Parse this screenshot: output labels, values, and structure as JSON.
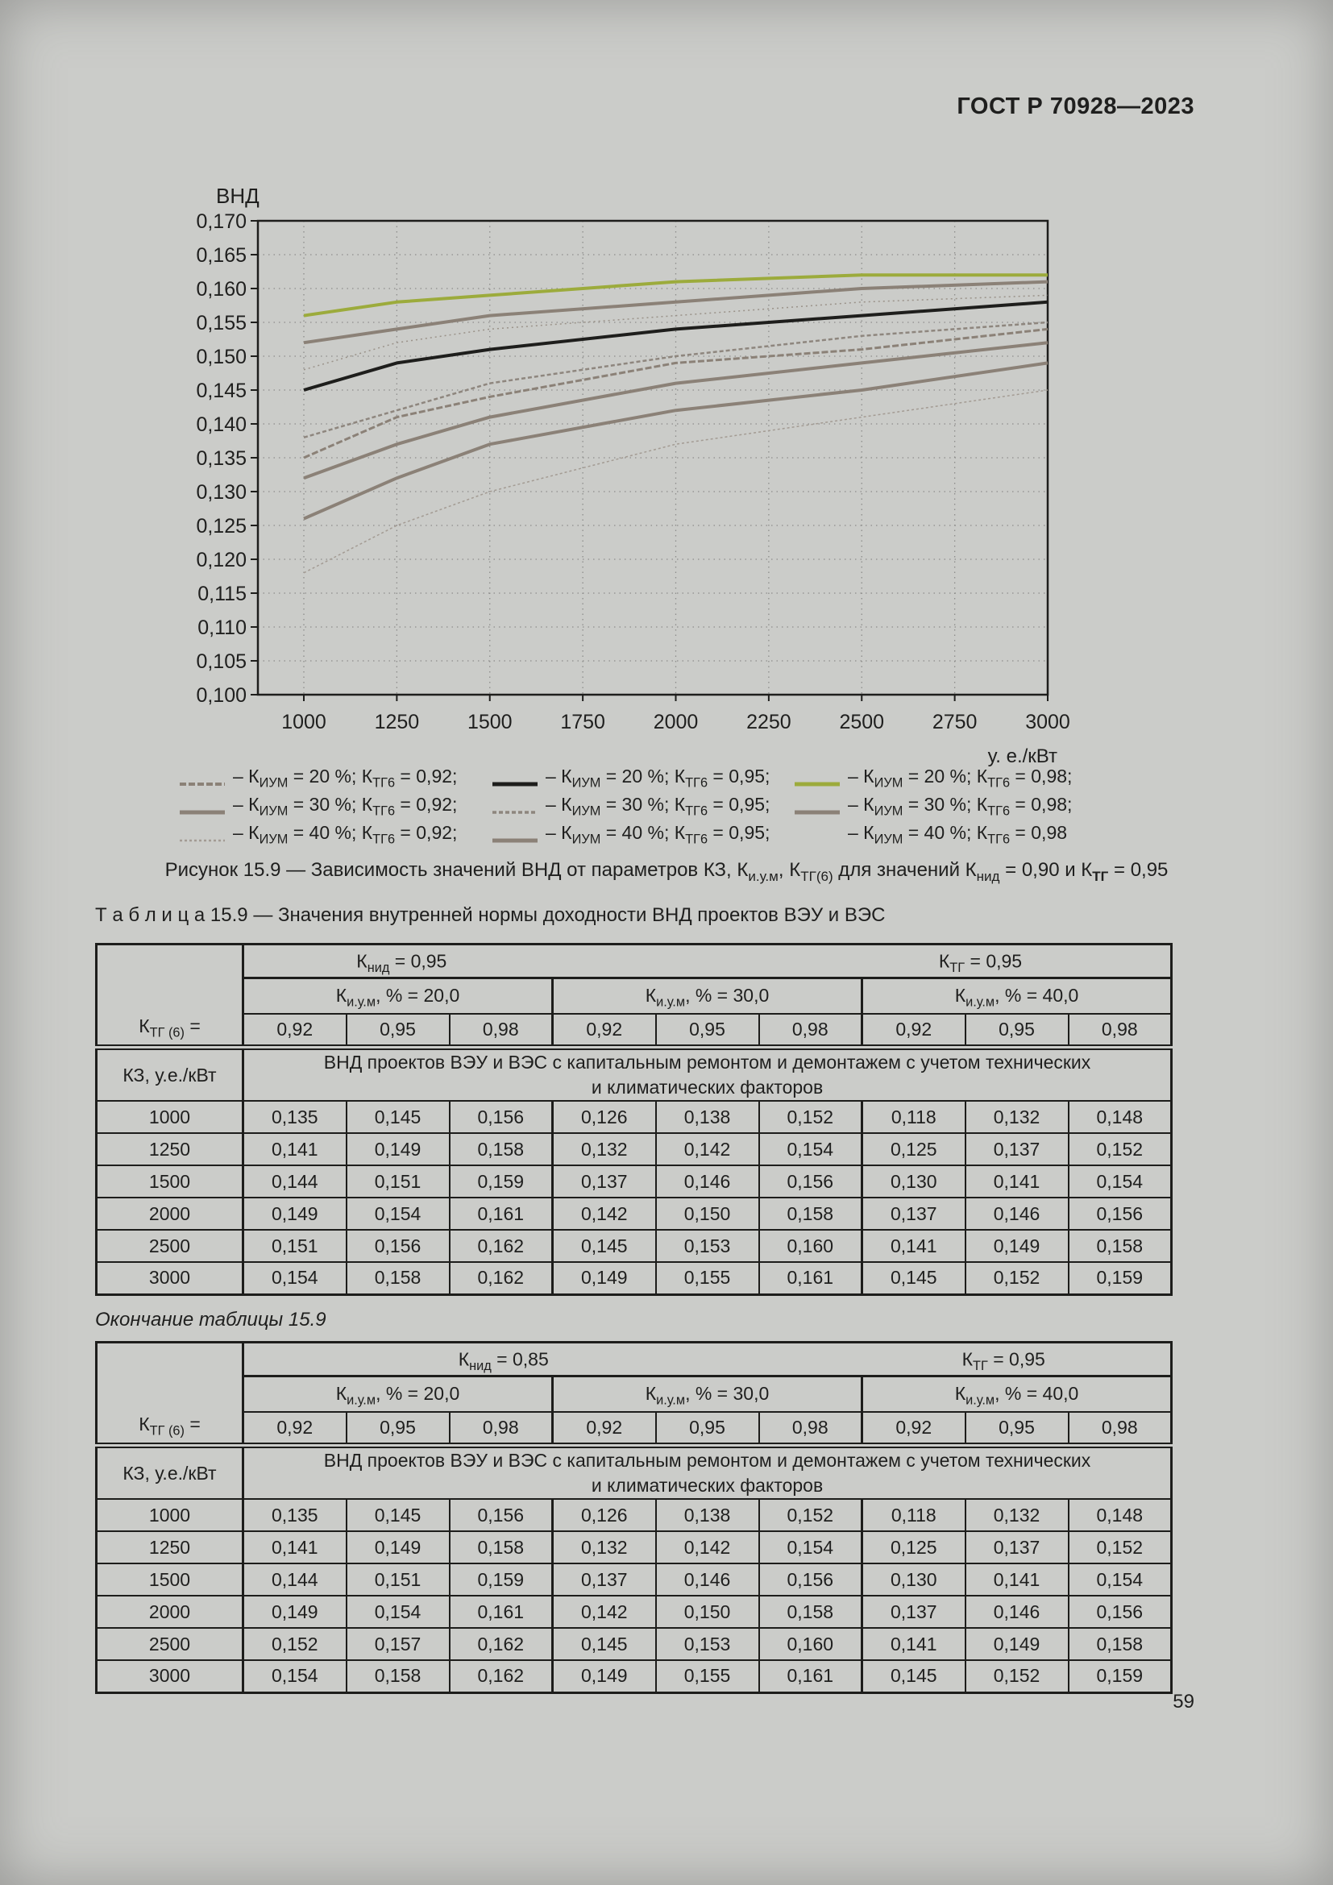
{
  "page": {
    "header": "ГОСТ Р 70928—2023",
    "page_number": "59"
  },
  "chart_data": {
    "type": "line",
    "ylabel": "ВНД",
    "x_unit_label": "у. е./кВт",
    "x": [
      1000,
      1250,
      1500,
      2000,
      2500,
      3000
    ],
    "x_ticks": [
      1000,
      1250,
      1500,
      1750,
      2000,
      2250,
      2500,
      2750,
      3000
    ],
    "y_ticks": [
      "0,170",
      "0,165",
      "0,160",
      "0,155",
      "0,150",
      "0,145",
      "0,140",
      "0,135",
      "0,130",
      "0,125",
      "0,120",
      "0,115",
      "0,110",
      "0,105",
      "0,100"
    ],
    "ylim": [
      0.1,
      0.17
    ],
    "xlim": [
      875,
      3000
    ],
    "y_tick_step": 0.005,
    "grid": "dotted",
    "legend_position": "bottom",
    "series": [
      {
        "name": "КИУМ = 20 %; КТГ6 = 0,92",
        "values": [
          0.135,
          0.141,
          0.144,
          0.149,
          0.151,
          0.154
        ],
        "color": "#8b8177",
        "width": 3,
        "dash": "8 3"
      },
      {
        "name": "КИУМ = 20 %; КТГ6 = 0,95",
        "values": [
          0.145,
          0.149,
          0.151,
          0.154,
          0.156,
          0.158
        ],
        "color": "#1e1e1c",
        "width": 4,
        "dash": ""
      },
      {
        "name": "КИУМ = 20 %; КТГ6 = 0,98",
        "values": [
          0.156,
          0.158,
          0.159,
          0.161,
          0.162,
          0.162
        ],
        "color": "#9cab3c",
        "width": 4,
        "dash": ""
      },
      {
        "name": "КИУМ = 30 %; КТГ6 = 0,92",
        "values": [
          0.126,
          0.132,
          0.137,
          0.142,
          0.145,
          0.149
        ],
        "color": "#8b8177",
        "width": 4,
        "dash": ""
      },
      {
        "name": "КИУМ = 30 %; КТГ6 = 0,95",
        "values": [
          0.138,
          0.142,
          0.146,
          0.15,
          0.153,
          0.155
        ],
        "color": "#8e867e",
        "width": 2.5,
        "dash": "5 3"
      },
      {
        "name": "КИУМ = 30 %; КТГ6 = 0,98",
        "values": [
          0.152,
          0.154,
          0.156,
          0.158,
          0.16,
          0.161
        ],
        "color": "#8b8177",
        "width": 4,
        "dash": ""
      },
      {
        "name": "КИУМ = 40 %; КТГ6 = 0,92",
        "values": [
          0.118,
          0.125,
          0.13,
          0.137,
          0.141,
          0.145
        ],
        "color": "#a39b93",
        "width": 1.5,
        "dash": "3 3"
      },
      {
        "name": "КИУМ = 40 %; КТГ6 = 0,95",
        "values": [
          0.132,
          0.137,
          0.141,
          0.146,
          0.149,
          0.152
        ],
        "color": "#8b8177",
        "width": 4,
        "dash": ""
      },
      {
        "name": "КИУМ = 40 %; КТГ6 = 0,98",
        "values": [
          0.148,
          0.152,
          0.154,
          0.156,
          0.158,
          0.159
        ],
        "color": "#9a9289",
        "width": 1.5,
        "dash": "2 4"
      }
    ]
  },
  "legend": {
    "items": [
      {
        "series": 0,
        "label": [
          {
            "t": "– К"
          },
          {
            "t": "ИУМ",
            "sub": true
          },
          {
            "t": " = 20 %; К"
          },
          {
            "t": "ТГ6",
            "sub": true
          },
          {
            "t": " = 0,92;"
          }
        ]
      },
      {
        "series": 1,
        "label": [
          {
            "t": "– К"
          },
          {
            "t": "ИУМ",
            "sub": true
          },
          {
            "t": " = 20 %; К"
          },
          {
            "t": "ТГ6",
            "sub": true
          },
          {
            "t": " = 0,95;"
          }
        ]
      },
      {
        "series": 2,
        "label": [
          {
            "t": "– К"
          },
          {
            "t": "ИУМ",
            "sub": true
          },
          {
            "t": " = 20 %; К"
          },
          {
            "t": "ТГ6",
            "sub": true
          },
          {
            "t": " = 0,98;"
          }
        ]
      },
      {
        "series": 3,
        "label": [
          {
            "t": "– К"
          },
          {
            "t": "ИУМ",
            "sub": true
          },
          {
            "t": " = 30 %; К"
          },
          {
            "t": "ТГ6",
            "sub": true
          },
          {
            "t": " = 0,92;"
          }
        ]
      },
      {
        "series": 4,
        "label": [
          {
            "t": "– К"
          },
          {
            "t": "ИУМ",
            "sub": true
          },
          {
            "t": " = 30 %; К"
          },
          {
            "t": "ТГ6",
            "sub": true
          },
          {
            "t": " = 0,95;"
          }
        ]
      },
      {
        "series": 5,
        "label": [
          {
            "t": "– К"
          },
          {
            "t": "ИУМ",
            "sub": true
          },
          {
            "t": " = 30 %; К"
          },
          {
            "t": "ТГ6",
            "sub": true
          },
          {
            "t": " = 0,98;"
          }
        ]
      },
      {
        "series": 6,
        "label": [
          {
            "t": "– К"
          },
          {
            "t": "ИУМ",
            "sub": true
          },
          {
            "t": " = 40 %; К"
          },
          {
            "t": "ТГ6",
            "sub": true
          },
          {
            "t": " = 0,92;"
          }
        ]
      },
      {
        "series": 7,
        "label": [
          {
            "t": "– К"
          },
          {
            "t": "ИУМ",
            "sub": true
          },
          {
            "t": " = 40 %; К"
          },
          {
            "t": "ТГ6",
            "sub": true
          },
          {
            "t": " = 0,95;"
          }
        ]
      },
      {
        "series": 8,
        "no_swatch": true,
        "label": [
          {
            "t": "– К"
          },
          {
            "t": "ИУМ",
            "sub": true
          },
          {
            "t": " = 40 %; К"
          },
          {
            "t": "ТГ6",
            "sub": true
          },
          {
            "t": " = 0,98"
          }
        ]
      }
    ]
  },
  "figure_caption": [
    {
      "t": "Рисунок 15.9 — Зависимость значений ВНД от параметров КЗ, К"
    },
    {
      "t": "и.у.м",
      "sub": true
    },
    {
      "t": ", К"
    },
    {
      "t": "ТГ(6)",
      "sub": true
    },
    {
      "t": " для значений К"
    },
    {
      "t": "нид",
      "sub": true
    },
    {
      "t": " = 0,90 и К"
    },
    {
      "t": "ТГ",
      "sub": true,
      "b": true
    },
    {
      "t": " = 0,95"
    }
  ],
  "table1": {
    "caption": [
      {
        "t": "Т а б л и ц а   15.9 — Значения внутренней нормы доходности ВНД проектов ВЭУ и ВЭС"
      }
    ],
    "knid": [
      {
        "t": "К"
      },
      {
        "t": "нид",
        "sub": true
      },
      {
        "t": " = 0,95"
      }
    ],
    "ktg": [
      {
        "t": "К"
      },
      {
        "t": "ТГ",
        "sub": true
      },
      {
        "t": " = 0,95"
      }
    ],
    "groups": [
      [
        {
          "t": "К"
        },
        {
          "t": "и.у.м",
          "sub": true
        },
        {
          "t": ", % = 20,0"
        }
      ],
      [
        {
          "t": "К"
        },
        {
          "t": "и.у.м",
          "sub": true
        },
        {
          "t": ", % = 30,0"
        }
      ],
      [
        {
          "t": "К"
        },
        {
          "t": "и.у.м",
          "sub": true
        },
        {
          "t": ", % = 40,0"
        }
      ]
    ],
    "ktg6_label": [
      {
        "t": "К"
      },
      {
        "t": "ТГ (6)",
        "sub": true
      },
      {
        "t": " ="
      }
    ],
    "sub_values": [
      "0,92",
      "0,95",
      "0,98",
      "0,92",
      "0,95",
      "0,98",
      "0,92",
      "0,95",
      "0,98"
    ],
    "kz_label": "КЗ, у.е./кВт",
    "vnd_header_line1": "ВНД проектов ВЭУ и ВЭС с капитальным ремонтом и демонтажем с учетом технических",
    "vnd_header_line2": "и климатических факторов",
    "rows": [
      [
        "1000",
        "0,135",
        "0,145",
        "0,156",
        "0,126",
        "0,138",
        "0,152",
        "0,118",
        "0,132",
        "0,148"
      ],
      [
        "1250",
        "0,141",
        "0,149",
        "0,158",
        "0,132",
        "0,142",
        "0,154",
        "0,125",
        "0,137",
        "0,152"
      ],
      [
        "1500",
        "0,144",
        "0,151",
        "0,159",
        "0,137",
        "0,146",
        "0,156",
        "0,130",
        "0,141",
        "0,154"
      ],
      [
        "2000",
        "0,149",
        "0,154",
        "0,161",
        "0,142",
        "0,150",
        "0,158",
        "0,137",
        "0,146",
        "0,156"
      ],
      [
        "2500",
        "0,151",
        "0,156",
        "0,162",
        "0,145",
        "0,153",
        "0,160",
        "0,141",
        "0,149",
        "0,158"
      ],
      [
        "3000",
        "0,154",
        "0,158",
        "0,162",
        "0,149",
        "0,155",
        "0,161",
        "0,145",
        "0,152",
        "0,159"
      ]
    ]
  },
  "table2": {
    "continuation": "Окончание таблицы 15.9",
    "knid": [
      {
        "t": "К"
      },
      {
        "t": "нид",
        "sub": true
      },
      {
        "t": " = 0,85"
      }
    ],
    "ktg": [
      {
        "t": "К"
      },
      {
        "t": "ТГ",
        "sub": true
      },
      {
        "t": " = 0,95"
      }
    ],
    "groups": [
      [
        {
          "t": "К"
        },
        {
          "t": "и.у.м",
          "sub": true
        },
        {
          "t": ", % = 20,0"
        }
      ],
      [
        {
          "t": "К"
        },
        {
          "t": "и.у.м",
          "sub": true
        },
        {
          "t": ", % = 30,0"
        }
      ],
      [
        {
          "t": "К"
        },
        {
          "t": "и.у.м",
          "sub": true
        },
        {
          "t": ", %  = 40,0"
        }
      ]
    ],
    "ktg6_label": [
      {
        "t": "К"
      },
      {
        "t": "ТГ (6)",
        "sub": true
      },
      {
        "t": " ="
      }
    ],
    "sub_values": [
      "0,92",
      "0,95",
      "0,98",
      "0,92",
      "0,95",
      "0,98",
      "0,92",
      "0,95",
      "0,98"
    ],
    "kz_label": "КЗ, у.е./кВт",
    "vnd_header_line1": "ВНД проектов ВЭУ и ВЭС с капитальным ремонтом и демонтажем с учетом технических",
    "vnd_header_line2": "и климатических факторов",
    "rows": [
      [
        "1000",
        "0,135",
        "0,145",
        "0,156",
        "0,126",
        "0,138",
        "0,152",
        "0,118",
        "0,132",
        "0,148"
      ],
      [
        "1250",
        "0,141",
        "0,149",
        "0,158",
        "0,132",
        "0,142",
        "0,154",
        "0,125",
        "0,137",
        "0,152"
      ],
      [
        "1500",
        "0,144",
        "0,151",
        "0,159",
        "0,137",
        "0,146",
        "0,156",
        "0,130",
        "0,141",
        "0,154"
      ],
      [
        "2000",
        "0,149",
        "0,154",
        "0,161",
        "0,142",
        "0,150",
        "0,158",
        "0,137",
        "0,146",
        "0,156"
      ],
      [
        "2500",
        "0,152",
        "0,157",
        "0,162",
        "0,145",
        "0,153",
        "0,160",
        "0,141",
        "0,149",
        "0,158"
      ],
      [
        "3000",
        "0,154",
        "0,158",
        "0,162",
        "0,149",
        "0,155",
        "0,161",
        "0,145",
        "0,152",
        "0,159"
      ]
    ]
  }
}
